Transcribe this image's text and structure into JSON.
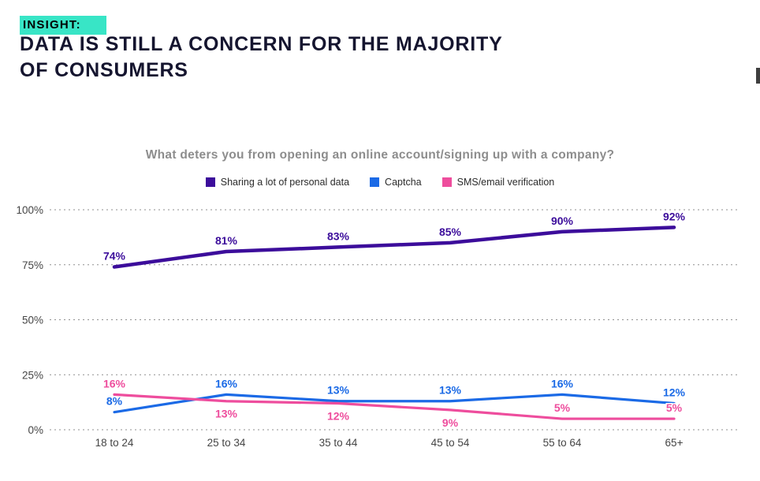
{
  "header": {
    "insight_label": "INSIGHT:",
    "title_line1": "DATA IS STILL A CONCERN FOR THE MAJORITY",
    "title_line2": "OF CONSUMERS",
    "highlight_color": "#38e5c6",
    "title_color": "#15152f"
  },
  "chart_data": {
    "type": "line",
    "title": "What deters you from opening an online account/signing up with a company?",
    "categories": [
      "18 to 24",
      "25 to 34",
      "35 to 44",
      "45 to 54",
      "55 to 64",
      "65+"
    ],
    "series": [
      {
        "name": "Sharing a lot of personal data",
        "color": "#3c0d9b",
        "values": [
          74,
          81,
          83,
          85,
          90,
          92
        ],
        "label_sides": [
          "above",
          "above",
          "above",
          "above",
          "above",
          "above"
        ]
      },
      {
        "name": "Captcha",
        "color": "#1b6ae6",
        "values": [
          8,
          16,
          13,
          13,
          16,
          12
        ],
        "label_sides": [
          "above",
          "above",
          "above",
          "above",
          "above",
          "above"
        ]
      },
      {
        "name": "SMS/email verification",
        "color": "#ee4d9d",
        "values": [
          16,
          13,
          12,
          9,
          5,
          5
        ],
        "label_sides": [
          "above",
          "below",
          "below",
          "below",
          "above",
          "above"
        ]
      }
    ],
    "y_ticks": [
      0,
      25,
      50,
      75,
      100
    ],
    "y_tick_suffix": "%",
    "ylim": [
      0,
      100
    ],
    "grid": "horizontal-dotted",
    "legend_position": "top-center",
    "axis_color": "#454545",
    "grid_color": "#8f8f8f",
    "question_color": "#8d8d8d"
  }
}
